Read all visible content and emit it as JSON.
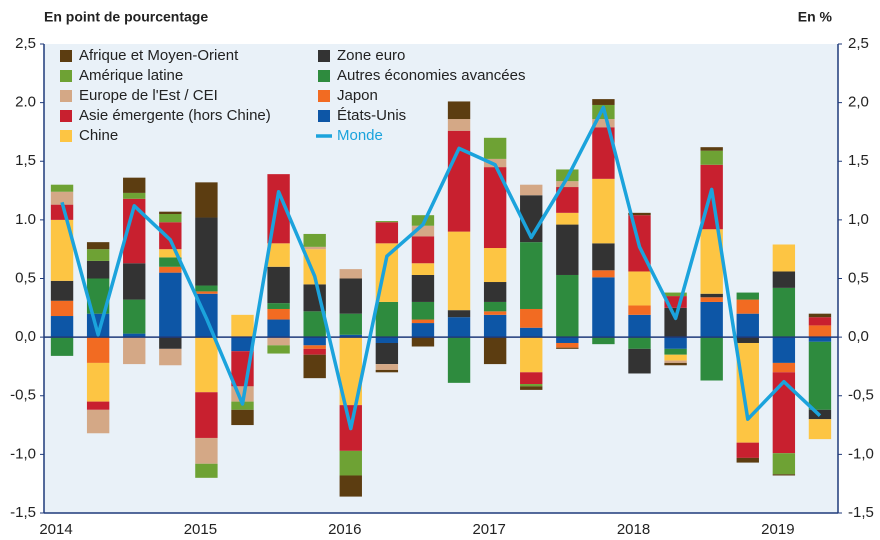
{
  "chart_data": {
    "type": "bar",
    "stacked": true,
    "title": "En point de pourcentage",
    "y2_title": "En %",
    "categories": [
      "2014",
      null,
      null,
      null,
      "2015",
      null,
      null,
      null,
      "2016",
      null,
      null,
      null,
      "2017",
      null,
      null,
      null,
      "2018",
      null,
      null,
      null,
      "2019",
      null
    ],
    "ylim": [
      -1.5,
      2.5
    ],
    "yticks": [
      {
        "value": 2.5,
        "label": "2,5"
      },
      {
        "value": 2.0,
        "label": "2.0"
      },
      {
        "value": 1.5,
        "label": "1,5"
      },
      {
        "value": 1.0,
        "label": "1.0"
      },
      {
        "value": 0.5,
        "label": "0,5"
      },
      {
        "value": 0,
        "label": "0,0"
      },
      {
        "value": -0.5,
        "label": "-0,5"
      },
      {
        "value": -1.0,
        "label": "-1,0"
      },
      {
        "value": -1.5,
        "label": "-1,5"
      }
    ],
    "y2lim": [
      -1.5,
      2.5
    ],
    "y2ticks": [
      {
        "value": 2.5,
        "label": "2,5"
      },
      {
        "value": 2.0,
        "label": "2,0"
      },
      {
        "value": 1.5,
        "label": "1,5"
      },
      {
        "value": 1.0,
        "label": "1,0"
      },
      {
        "value": 0.5,
        "label": "0,5"
      },
      {
        "value": 0,
        "label": "0,0"
      },
      {
        "value": -0.5,
        "label": "-0,5"
      },
      {
        "value": -1.0,
        "label": "-1,0"
      },
      {
        "value": -1.5,
        "label": "-1,5"
      }
    ],
    "grid": false,
    "legend": "top-left",
    "series": [
      {
        "name": "Afrique et Moyen-Orient",
        "color": "#5c3d11",
        "values": [
          0,
          0.06,
          0.13,
          0.02,
          0.3,
          -0.13,
          0,
          -0.2,
          -0.18,
          -0.02,
          -0.08,
          0.15,
          -0.23,
          -0.03,
          -0.01,
          0.05,
          0.02,
          -0.02,
          0.03,
          -0.04,
          -0.01,
          0.03
        ]
      },
      {
        "name": "Amérique latine",
        "color": "#6ea234",
        "values": [
          0.06,
          0.1,
          0.05,
          0.07,
          -0.12,
          -0.07,
          -0.07,
          0.11,
          -0.21,
          0.01,
          0.09,
          0,
          0.18,
          -0.02,
          0.1,
          0.12,
          0,
          0.03,
          0.12,
          0,
          -0.18,
          0
        ]
      },
      {
        "name": "Europe de l'Est / CEI",
        "color": "#d4a886",
        "values": [
          0.11,
          -0.2,
          -0.23,
          -0.14,
          -0.22,
          -0.13,
          -0.07,
          0.02,
          0.08,
          -0.05,
          0.09,
          0.1,
          0.07,
          0.09,
          0.05,
          0.07,
          0,
          -0.02,
          0,
          0,
          0,
          0
        ]
      },
      {
        "name": "Asie émergente (hors Chine)",
        "color": "#c8202f",
        "values": [
          0.13,
          -0.07,
          0.55,
          0.23,
          -0.39,
          -0.3,
          0.59,
          -0.05,
          -0.39,
          0.18,
          0.23,
          0.86,
          0.69,
          -0.1,
          0.22,
          0.44,
          0.48,
          0.1,
          0.55,
          -0.13,
          -0.69,
          0.07
        ]
      },
      {
        "name": "Chine",
        "color": "#fdc543",
        "values": [
          0.52,
          -0.33,
          0,
          0.07,
          -0.47,
          0.19,
          0.2,
          0.3,
          -0.58,
          0.5,
          0.1,
          0.67,
          0.29,
          -0.3,
          0.1,
          0.55,
          0.29,
          -0.05,
          0.55,
          -0.85,
          0.23,
          -0.17
        ]
      },
      {
        "name": "Zone euro",
        "color": "#333333",
        "values": [
          0.17,
          0.15,
          0.31,
          -0.1,
          0.58,
          0,
          0.31,
          0.23,
          0.3,
          -0.18,
          0.23,
          0.06,
          0.17,
          0.4,
          0.43,
          0.23,
          -0.21,
          0.25,
          0.03,
          -0.05,
          0.14,
          -0.08
        ]
      },
      {
        "name": "Autres économies avancées",
        "color": "#2e8b3e",
        "values": [
          -0.16,
          0.3,
          0.29,
          0.08,
          0.05,
          0,
          0.05,
          0.22,
          0.18,
          0.3,
          0.15,
          -0.39,
          0.08,
          0.57,
          0.53,
          -0.06,
          -0.1,
          -0.05,
          -0.37,
          0.06,
          0.42,
          -0.58
        ]
      },
      {
        "name": "Japon",
        "color": "#f26b22",
        "values": [
          0.13,
          -0.22,
          0,
          0.05,
          0.02,
          0,
          0.09,
          -0.03,
          0,
          0,
          0.03,
          0,
          0.03,
          0.16,
          -0.04,
          0.06,
          0.08,
          0,
          0.04,
          0.12,
          -0.08,
          0.1
        ]
      },
      {
        "name": "États-Unis",
        "color": "#0d56a6",
        "values": [
          0.18,
          0.2,
          0.03,
          0.55,
          0.37,
          -0.12,
          0.15,
          -0.07,
          0.02,
          -0.05,
          0.12,
          0.17,
          0.19,
          0.08,
          -0.05,
          0.51,
          0.19,
          -0.1,
          0.3,
          0.2,
          -0.22,
          -0.04
        ]
      },
      {
        "name": "Monde",
        "color": "#1ba3dc",
        "type": "line",
        "values": [
          1.15,
          0.02,
          1.12,
          0.83,
          0.16,
          -0.57,
          1.24,
          0.52,
          -0.78,
          0.69,
          0.96,
          1.61,
          1.47,
          0.85,
          1.36,
          1.96,
          0.77,
          0.16,
          1.26,
          -0.7,
          -0.38,
          -0.67
        ]
      }
    ]
  }
}
